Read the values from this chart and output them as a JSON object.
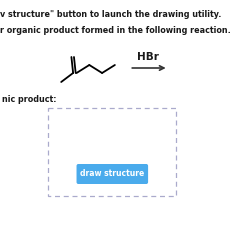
{
  "line1": "v structure\" button to launch the drawing utility.",
  "line2": "r organic product formed in the following reaction.",
  "reagent": "HBr",
  "product_label": "nic product:",
  "button_text": "draw structure",
  "bg_color": "#ffffff",
  "arrow_color": "#333333",
  "button_color": "#4aabec",
  "text_color": "#1a1a1a",
  "dashed_color": "#aaaacc"
}
